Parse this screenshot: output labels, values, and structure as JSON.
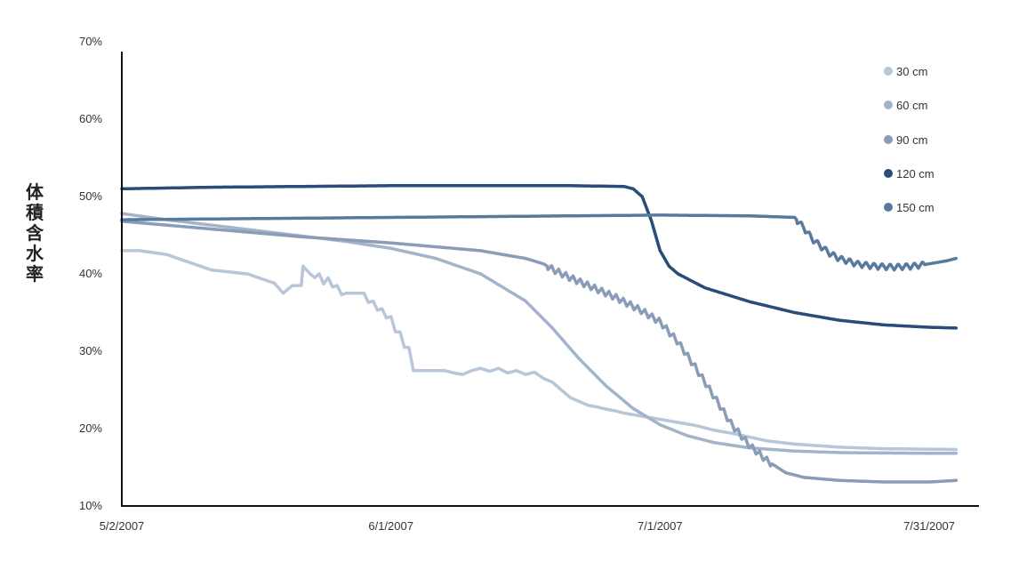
{
  "chart_data": {
    "type": "line",
    "title": "",
    "xlabel": "",
    "ylabel": "体積含水率",
    "ylim": [
      10,
      70
    ],
    "yticks": [
      10,
      20,
      30,
      40,
      50,
      60,
      70
    ],
    "ytick_labels": [
      "10%",
      "20%",
      "30%",
      "40%",
      "50%",
      "60%",
      "70%"
    ],
    "xlim": [
      0,
      93
    ],
    "xticks": [
      0,
      30,
      60,
      90
    ],
    "xtick_labels": [
      "5/2/2007",
      "6/1/2007",
      "7/1/2007",
      "7/31/2007"
    ],
    "x_unit": "days from 5/2/2007",
    "grid": false,
    "legend": "top-right",
    "series": [
      {
        "name": "30 cm",
        "color": "#b7c6d8",
        "points": [
          [
            0,
            43
          ],
          [
            2,
            43
          ],
          [
            5,
            42.5
          ],
          [
            10,
            40.5
          ],
          [
            14,
            40
          ],
          [
            17,
            38.8
          ],
          [
            18,
            37.5
          ],
          [
            19,
            38.5
          ],
          [
            20,
            38.5
          ],
          [
            20.2,
            41
          ],
          [
            21,
            40
          ],
          [
            21.5,
            39.5
          ],
          [
            22,
            40
          ],
          [
            22.5,
            38.7
          ],
          [
            23,
            39.5
          ],
          [
            23.5,
            38.3
          ],
          [
            24,
            38.5
          ],
          [
            24.5,
            37.3
          ],
          [
            25,
            37.5
          ],
          [
            27,
            37.5
          ],
          [
            27.5,
            36.3
          ],
          [
            28,
            36.5
          ],
          [
            28.5,
            35.3
          ],
          [
            29,
            35.5
          ],
          [
            29.5,
            34.3
          ],
          [
            30,
            34.5
          ],
          [
            30.5,
            32.5
          ],
          [
            31,
            32.5
          ],
          [
            31.5,
            30.5
          ],
          [
            32,
            30.5
          ],
          [
            32.5,
            27.5
          ],
          [
            36,
            27.5
          ],
          [
            37,
            27.2
          ],
          [
            38,
            27
          ],
          [
            39,
            27.5
          ],
          [
            40,
            27.8
          ],
          [
            41,
            27.4
          ],
          [
            42,
            27.8
          ],
          [
            43,
            27.2
          ],
          [
            44,
            27.5
          ],
          [
            45,
            27
          ],
          [
            46,
            27.3
          ],
          [
            47,
            26.5
          ],
          [
            48,
            26
          ],
          [
            49,
            25
          ],
          [
            50,
            24
          ],
          [
            51,
            23.5
          ],
          [
            52,
            23
          ],
          [
            53,
            22.8
          ],
          [
            54,
            22.5
          ],
          [
            55,
            22.3
          ],
          [
            56,
            22
          ],
          [
            58,
            21.6
          ],
          [
            60,
            21.2
          ],
          [
            62,
            20.8
          ],
          [
            64,
            20.4
          ],
          [
            66,
            19.8
          ],
          [
            68,
            19.4
          ],
          [
            70,
            18.9
          ],
          [
            72,
            18.4
          ],
          [
            75,
            18
          ],
          [
            80,
            17.6
          ],
          [
            85,
            17.4
          ],
          [
            93,
            17.3
          ]
        ]
      },
      {
        "name": "60 cm",
        "color": "#a3b4ca",
        "points": [
          [
            0,
            47.8
          ],
          [
            5,
            47
          ],
          [
            10,
            46.3
          ],
          [
            15,
            45.6
          ],
          [
            20,
            44.9
          ],
          [
            25,
            44.2
          ],
          [
            30,
            43.3
          ],
          [
            35,
            42
          ],
          [
            40,
            40
          ],
          [
            45,
            36.5
          ],
          [
            48,
            33
          ],
          [
            51,
            29
          ],
          [
            54,
            25.5
          ],
          [
            57,
            22.6
          ],
          [
            60,
            20.5
          ],
          [
            63,
            19.1
          ],
          [
            66,
            18.2
          ],
          [
            70,
            17.5
          ],
          [
            75,
            17.1
          ],
          [
            80,
            16.9
          ],
          [
            85,
            16.85
          ],
          [
            93,
            16.8
          ]
        ]
      },
      {
        "name": "90 cm",
        "color": "#8a9cb6",
        "points": [
          [
            0,
            46.8
          ],
          [
            5,
            46.3
          ],
          [
            10,
            45.8
          ],
          [
            15,
            45.3
          ],
          [
            20,
            44.8
          ],
          [
            25,
            44.4
          ],
          [
            30,
            44
          ],
          [
            35,
            43.5
          ],
          [
            40,
            43
          ],
          [
            45,
            42
          ],
          [
            47,
            41.3
          ],
          [
            48,
            40.6
          ],
          [
            50,
            39.5
          ],
          [
            55,
            37
          ],
          [
            58,
            35.2
          ],
          [
            60,
            33.8
          ],
          [
            62,
            31.2
          ],
          [
            64,
            27.8
          ],
          [
            66,
            24.2
          ],
          [
            68,
            20.5
          ],
          [
            70,
            17.8
          ],
          [
            72,
            15.8
          ],
          [
            74,
            14.3
          ],
          [
            76,
            13.7
          ],
          [
            80,
            13.3
          ],
          [
            85,
            13.1
          ],
          [
            90,
            13.1
          ],
          [
            93,
            13.3
          ]
        ]
      },
      {
        "name": "120 cm",
        "color": "#274d78",
        "points": [
          [
            0,
            51
          ],
          [
            10,
            51.2
          ],
          [
            20,
            51.3
          ],
          [
            30,
            51.4
          ],
          [
            40,
            51.4
          ],
          [
            50,
            51.4
          ],
          [
            56,
            51.3
          ],
          [
            57,
            51
          ],
          [
            58,
            50
          ],
          [
            59,
            47
          ],
          [
            60,
            43
          ],
          [
            61,
            41
          ],
          [
            62,
            40
          ],
          [
            65,
            38.2
          ],
          [
            70,
            36.4
          ],
          [
            75,
            35
          ],
          [
            80,
            34
          ],
          [
            85,
            33.4
          ],
          [
            90,
            33.1
          ],
          [
            93,
            33
          ]
        ]
      },
      {
        "name": "150 cm",
        "color": "#587b9d",
        "points": [
          [
            0,
            47
          ],
          [
            10,
            47.1
          ],
          [
            20,
            47.2
          ],
          [
            30,
            47.3
          ],
          [
            40,
            47.4
          ],
          [
            50,
            47.5
          ],
          [
            60,
            47.6
          ],
          [
            70,
            47.5
          ],
          [
            75,
            47.3
          ],
          [
            76,
            46
          ],
          [
            77,
            44.5
          ],
          [
            78,
            43.5
          ],
          [
            79,
            42.6
          ],
          [
            80,
            42
          ],
          [
            82,
            41.3
          ],
          [
            84,
            41
          ],
          [
            86,
            40.9
          ],
          [
            88,
            41
          ],
          [
            90,
            41.3
          ],
          [
            92,
            41.7
          ],
          [
            93,
            42
          ]
        ]
      }
    ],
    "sawtooth": [
      {
        "series": "90 cm",
        "x_from": 47.5,
        "x_to": 72.5,
        "period": 0.8
      },
      {
        "series": "150 cm",
        "x_from": 75.3,
        "x_to": 89.5,
        "period": 0.9
      },
      {
        "series": "30 cm",
        "x_from": 44,
        "x_to": 53,
        "period": 0.8
      }
    ]
  }
}
